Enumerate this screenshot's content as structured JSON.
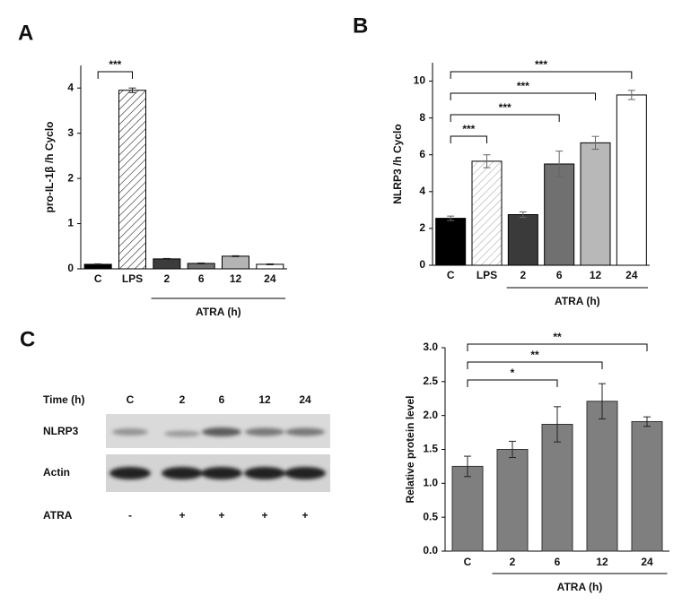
{
  "chart_data": [
    {
      "type": "bar",
      "panel": "A",
      "y_label": "pro-IL-1β /h Cyclo",
      "categories": [
        "C",
        "LPS",
        "2",
        "6",
        "12",
        "24"
      ],
      "values": [
        0.1,
        3.95,
        0.22,
        0.12,
        0.28,
        0.1
      ],
      "errors": [
        0.01,
        0.05,
        0.01,
        0.01,
        0.01,
        0.01
      ],
      "colors": [
        "#000000",
        "#222222",
        "#3c3c3c",
        "#707070",
        "#b4b4b4",
        "#ffffff"
      ],
      "hatch": [
        false,
        true,
        false,
        false,
        false,
        false
      ],
      "ylim": [
        0,
        4.5
      ],
      "yticks": [
        0,
        1,
        2,
        3,
        4
      ],
      "annotations": [
        {
          "from": 0,
          "to": 1,
          "label": "***"
        }
      ],
      "group": {
        "label": "ATRA (h)",
        "from": 2,
        "to": 5
      }
    },
    {
      "type": "bar",
      "panel": "B",
      "y_label": "NLRP3 /h Cyclo",
      "categories": [
        "C",
        "LPS",
        "2",
        "6",
        "12",
        "24"
      ],
      "values": [
        2.55,
        5.65,
        2.75,
        5.5,
        6.65,
        9.25
      ],
      "errors": [
        0.12,
        0.35,
        0.15,
        0.7,
        0.35,
        0.25
      ],
      "colors": [
        "#000000",
        "#b0b0b0",
        "#3a3a3a",
        "#707070",
        "#b8b8b8",
        "#ffffff"
      ],
      "hatch": [
        false,
        true,
        false,
        false,
        false,
        false
      ],
      "ylim": [
        0,
        11
      ],
      "yticks": [
        0,
        2,
        4,
        6,
        8,
        10
      ],
      "annotations": [
        {
          "from": 0,
          "to": 1,
          "label": "***"
        },
        {
          "from": 0,
          "to": 3,
          "label": "***"
        },
        {
          "from": 0,
          "to": 4,
          "label": "***"
        },
        {
          "from": 0,
          "to": 5,
          "label": "***"
        }
      ],
      "group": {
        "label": "ATRA (h)",
        "from": 2,
        "to": 5
      }
    },
    {
      "type": "bar",
      "y_label": "Relative protein level",
      "categories": [
        "C",
        "2",
        "6",
        "12",
        "24"
      ],
      "values": [
        1.25,
        1.5,
        1.87,
        2.21,
        1.91
      ],
      "errors": [
        0.15,
        0.12,
        0.26,
        0.26,
        0.07
      ],
      "colors": [
        "#7f7f7f",
        "#7f7f7f",
        "#7f7f7f",
        "#7f7f7f",
        "#7f7f7f"
      ],
      "hatch": [
        false,
        false,
        false,
        false,
        false
      ],
      "ylim": [
        0,
        3
      ],
      "yticks": [
        {
          "value": 0,
          "label": "0.0"
        },
        0.5,
        {
          "value": 1,
          "label": "1.0"
        },
        1.5,
        {
          "value": 2,
          "label": "2.0"
        },
        2.5,
        {
          "value": 3,
          "label": "3.0"
        }
      ],
      "annotations": [
        {
          "from": 0,
          "to": 2,
          "label": "*"
        },
        {
          "from": 0,
          "to": 3,
          "label": "**"
        },
        {
          "from": 0,
          "to": 4,
          "label": "**"
        }
      ],
      "group": {
        "label": "ATRA (h)",
        "from": 1,
        "to": 4
      }
    }
  ],
  "blot": {
    "panel": "C",
    "time_label": "Time (h)",
    "lanes": [
      "C",
      "2",
      "6",
      "12",
      "24"
    ],
    "rows": [
      "NLRP3",
      "Actin"
    ],
    "treatment_label": "ATRA",
    "treatment": [
      "-",
      "+",
      "+",
      "+",
      "+"
    ]
  }
}
